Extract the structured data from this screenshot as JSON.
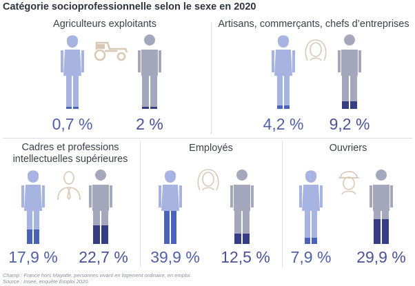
{
  "title": "Catégorie socioprofessionnelle selon le sexe en 2020",
  "colors": {
    "female": "#a7b3e0",
    "female_fill": "#4b63b6",
    "male": "#a5a8bd",
    "male_fill": "#353e82",
    "icon": "#d8c8b4"
  },
  "chart_data": {
    "type": "pictogram",
    "title": "Catégorie socioprofessionnelle selon le sexe en 2020",
    "series": [
      {
        "name": "femmes"
      },
      {
        "name": "hommes"
      }
    ],
    "categories": [
      {
        "label": "Agriculteurs exploitants",
        "female": "0,7 %",
        "male": "2 %",
        "female_value": 0.7,
        "male_value": 2,
        "icon": "tractor-icon"
      },
      {
        "label": "Artisans, commerçants, chefs d’entreprises",
        "female": "4,2 %",
        "male": "9,2 %",
        "female_value": 4.2,
        "male_value": 9.2,
        "icon": "woman-portrait-icon"
      },
      {
        "label": "Cadres et professions intellectuelles supérieures",
        "label_lines": [
          "Cadres et professions",
          "intellectuelles supérieures"
        ],
        "female": "17,9 %",
        "male": "22,7 %",
        "female_value": 17.9,
        "male_value": 22.7,
        "icon": "man-with-tie-icon"
      },
      {
        "label": "Employés",
        "female": "39,9 %",
        "male": "12,5 %",
        "female_value": 39.9,
        "male_value": 12.5,
        "icon": "woman-portrait-icon"
      },
      {
        "label": "Ouvriers",
        "female": "7,9 %",
        "male": "29,9 %",
        "female_value": 7.9,
        "male_value": 29.9,
        "icon": "worker-helmet-icon"
      }
    ]
  },
  "footnotes": {
    "champ": "Champ : France hors Mayotte, personnes vivant en logement ordinaire, en emploi.",
    "source": "Source : Insee, enquête Emploi 2020."
  }
}
